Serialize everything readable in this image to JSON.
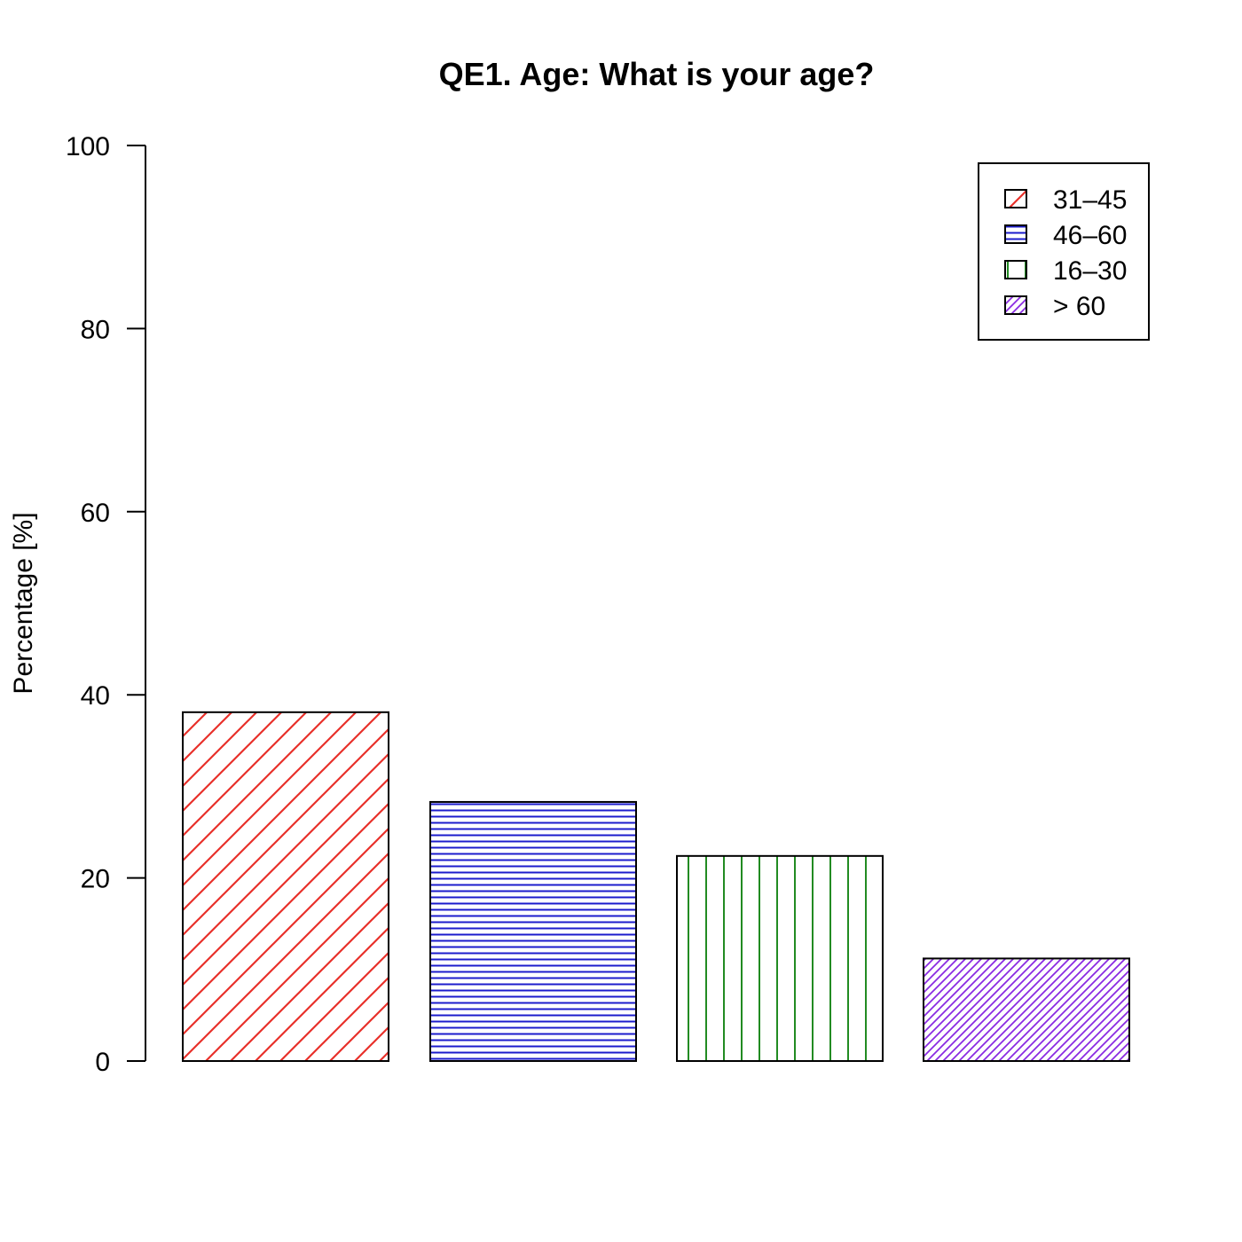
{
  "chart_data": {
    "type": "bar",
    "title": "QE1. Age: What is your age?",
    "xlabel": "",
    "ylabel": "Percentage [%]",
    "ylim": [
      0,
      100
    ],
    "yticks": [
      0,
      20,
      40,
      60,
      80,
      100
    ],
    "categories": [
      "31–45",
      "46–60",
      "16–30",
      "> 60"
    ],
    "values": [
      38.1,
      28.3,
      22.4,
      11.2
    ],
    "colors": [
      "#e8302a",
      "#1c1ccc",
      "#228b22",
      "#8a2be2"
    ],
    "patterns": [
      "diagonal-sparse",
      "horizontal",
      "vertical",
      "diagonal-dense"
    ],
    "legend": {
      "position": "top-right",
      "entries": [
        "31–45",
        "46–60",
        "16–30",
        "> 60"
      ]
    },
    "grid": false
  }
}
